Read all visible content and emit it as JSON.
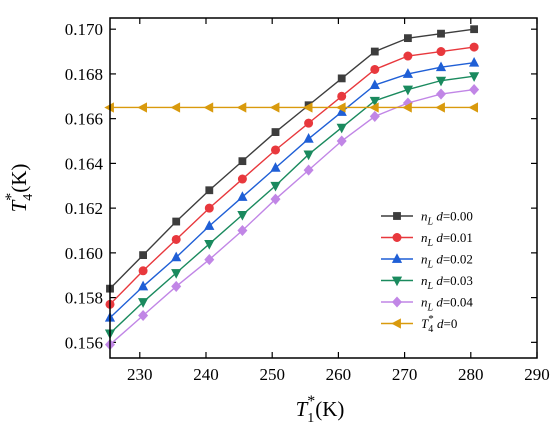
{
  "chart_data": {
    "type": "line",
    "x": [
      225.5,
      230.5,
      235.5,
      240.5,
      245.5,
      250.5,
      255.5,
      260.5,
      265.5,
      270.5,
      275.5,
      280.5
    ],
    "xlim": [
      225.5,
      290
    ],
    "ylim": [
      0.1553,
      0.1705
    ],
    "x_ticks": [
      "230",
      "240",
      "250",
      "260",
      "270",
      "280",
      "290"
    ],
    "y_ticks": [
      "0.156",
      "0.158",
      "0.160",
      "0.162",
      "0.164",
      "0.166",
      "0.168",
      "0.170"
    ],
    "xlabel": {
      "main": "T",
      "sub": "1",
      "sup": "*",
      "unit": "(K)"
    },
    "ylabel": {
      "main": "T",
      "sub": "4",
      "sup": "*",
      "unit": "(K)"
    },
    "legend_position": "right",
    "series": [
      {
        "label_main": "n",
        "label_sub": "L",
        "label_rest": " d=0.00",
        "color": "#3d3d3d",
        "marker": "square",
        "values": [
          0.1584,
          0.1599,
          0.1614,
          0.1628,
          0.1641,
          0.1654,
          0.1666,
          0.1678,
          0.169,
          0.1696,
          0.1698,
          0.17
        ]
      },
      {
        "label_main": "n",
        "label_sub": "L",
        "label_rest": " d=0.01",
        "color": "#e8383d",
        "marker": "circle",
        "values": [
          0.1577,
          0.1592,
          0.1606,
          0.162,
          0.1633,
          0.1646,
          0.1658,
          0.167,
          0.1682,
          0.1688,
          0.169,
          0.1692
        ]
      },
      {
        "label_main": "n",
        "label_sub": "L",
        "label_rest": " d=0.02",
        "color": "#1f5fd6",
        "marker": "triangle-up",
        "values": [
          0.1571,
          0.1585,
          0.1598,
          0.1612,
          0.1625,
          0.1638,
          0.1651,
          0.1663,
          0.1675,
          0.168,
          0.1683,
          0.1685
        ]
      },
      {
        "label_main": "n",
        "label_sub": "L",
        "label_rest": " d=0.03",
        "color": "#1a8a5e",
        "marker": "triangle-down",
        "values": [
          0.1564,
          0.1578,
          0.1591,
          0.1604,
          0.1617,
          0.163,
          0.1644,
          0.1656,
          0.1668,
          0.1673,
          0.1677,
          0.1679
        ]
      },
      {
        "label_main": "n",
        "label_sub": "L",
        "label_rest": " d=0.04",
        "color": "#c186e6",
        "marker": "diamond",
        "values": [
          0.1559,
          0.1572,
          0.1585,
          0.1597,
          0.161,
          0.1624,
          0.1637,
          0.165,
          0.1661,
          0.1667,
          0.1671,
          0.1673
        ]
      },
      {
        "label_main": "T",
        "label_sub": "4",
        "label_sup": "*",
        "label_rest": " d=0",
        "color": "#d99a0d",
        "marker": "triangle-left",
        "values": [
          0.1665,
          0.1665,
          0.1665,
          0.1665,
          0.1665,
          0.1665,
          0.1665,
          0.1665,
          0.1665,
          0.1665,
          0.1665,
          0.1665
        ]
      }
    ]
  }
}
